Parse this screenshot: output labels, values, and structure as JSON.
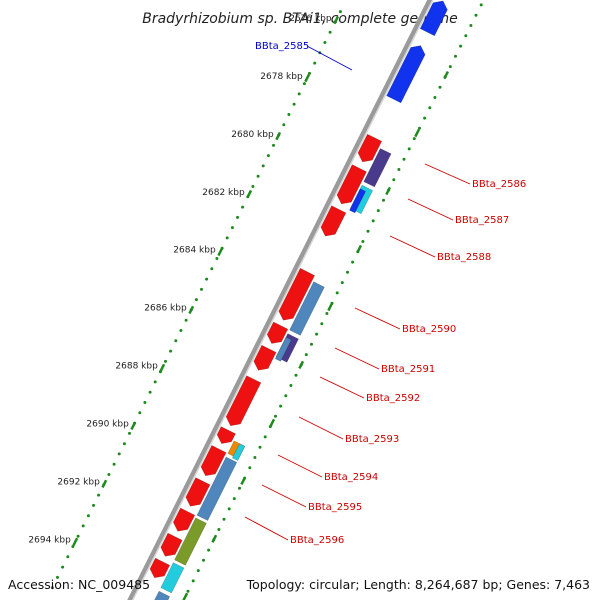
{
  "title": "Bradyrhizobium sp. BTAi1, complete genome",
  "accession": "Accession: NC_009485",
  "stats": "Topology: circular; Length: 8,264,687 bp; Genes: 7,463",
  "colors": {
    "backbone": "#9a9a9a",
    "tick": "#1e8a1e",
    "forward_gene": "#ee1111",
    "label_red": "#cc0000",
    "label_blue": "#0000cc",
    "blue": "#1133ee",
    "purple": "#4a3a8c",
    "cyan": "#22ccdd",
    "steel": "#4f86bb",
    "orange": "#ee8800",
    "olive": "#7a9a2a"
  },
  "kbp_ticks": [
    "2676 kbp",
    "2678 kbp",
    "2680 kbp",
    "2682 kbp",
    "2684 kbp",
    "2686 kbp",
    "2688 kbp",
    "2690 kbp",
    "2692 kbp",
    "2694 kbp"
  ],
  "gene_labels": [
    {
      "text": "BBta_2585",
      "color": "label_blue"
    },
    {
      "text": "BBta_2586",
      "color": "label_red"
    },
    {
      "text": "BBta_2587",
      "color": "label_red"
    },
    {
      "text": "BBta_2588",
      "color": "label_red"
    },
    {
      "text": "BBta_2590",
      "color": "label_red"
    },
    {
      "text": "BBta_2591",
      "color": "label_red"
    },
    {
      "text": "BBta_2592",
      "color": "label_red"
    },
    {
      "text": "BBta_2593",
      "color": "label_red"
    },
    {
      "text": "BBta_2594",
      "color": "label_red"
    },
    {
      "text": "BBta_2595",
      "color": "label_red"
    },
    {
      "text": "BBta_2596",
      "color": "label_red"
    }
  ]
}
